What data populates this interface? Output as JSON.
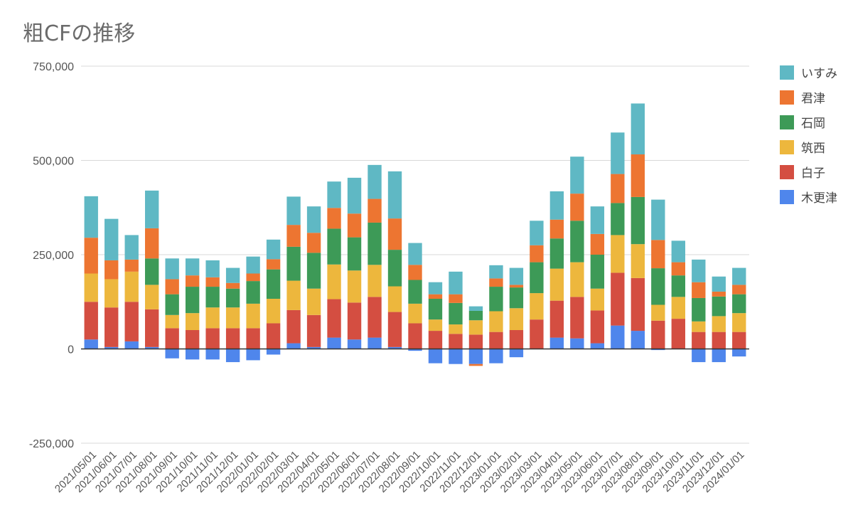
{
  "chart_data": {
    "type": "bar",
    "stacked": true,
    "title": "粗CFの推移",
    "ylim": [
      -250000,
      750000
    ],
    "yticks": [
      {
        "value": 750000,
        "label": "750,000"
      },
      {
        "value": 500000,
        "label": "500,000"
      },
      {
        "value": 250000,
        "label": "250,000"
      },
      {
        "value": 0,
        "label": "0"
      },
      {
        "value": -250000,
        "label": "-250,000"
      }
    ],
    "grid": true,
    "legend_position": "right",
    "categories": [
      "2021/05/01",
      "2021/06/01",
      "2021/07/01",
      "2021/08/01",
      "2021/09/01",
      "2021/10/01",
      "2021/11/01",
      "2021/12/01",
      "2022/01/01",
      "2022/02/01",
      "2022/03/01",
      "2022/04/01",
      "2022/05/01",
      "2022/06/01",
      "2022/07/01",
      "2022/08/01",
      "2022/09/01",
      "2022/10/01",
      "2022/11/01",
      "2022/12/01",
      "2023/01/01",
      "2023/02/01",
      "2023/03/01",
      "2023/04/01",
      "2023/05/01",
      "2023/06/01",
      "2023/07/01",
      "2023/08/01",
      "2023/09/01",
      "2023/10/01",
      "2023/11/01",
      "2023/12/01",
      "2024/01/01"
    ],
    "series": [
      {
        "name": "木更津",
        "color": "#4f86ec",
        "values": [
          25000,
          5000,
          20000,
          5000,
          -25000,
          -28000,
          -28000,
          -35000,
          -30000,
          -15000,
          15000,
          5000,
          30000,
          25000,
          30000,
          5000,
          -5000,
          -38000,
          -40000,
          -40000,
          -38000,
          -22000,
          0,
          30000,
          28000,
          15000,
          62000,
          48000,
          -3000,
          0,
          -35000,
          -35000,
          -20000
        ]
      },
      {
        "name": "白子",
        "color": "#d44e41",
        "values": [
          100000,
          105000,
          105000,
          100000,
          55000,
          50000,
          55000,
          55000,
          55000,
          68000,
          88000,
          85000,
          102000,
          98000,
          108000,
          93000,
          68000,
          48000,
          40000,
          38000,
          45000,
          50000,
          78000,
          98000,
          110000,
          87000,
          140000,
          140000,
          75000,
          80000,
          45000,
          45000,
          45000
        ]
      },
      {
        "name": "筑西",
        "color": "#edb73d",
        "values": [
          75000,
          75000,
          80000,
          65000,
          35000,
          45000,
          55000,
          55000,
          65000,
          65000,
          78000,
          70000,
          92000,
          85000,
          85000,
          68000,
          52000,
          30000,
          25000,
          38000,
          55000,
          58000,
          70000,
          85000,
          92000,
          58000,
          100000,
          90000,
          42000,
          58000,
          28000,
          42000,
          50000
        ]
      },
      {
        "name": "石岡",
        "color": "#3d9a57",
        "values": [
          0,
          0,
          0,
          70000,
          55000,
          70000,
          55000,
          50000,
          60000,
          78000,
          90000,
          95000,
          95000,
          88000,
          112000,
          97000,
          63000,
          55000,
          57000,
          25000,
          65000,
          55000,
          82000,
          80000,
          110000,
          90000,
          85000,
          125000,
          97000,
          57000,
          62000,
          52000,
          50000
        ]
      },
      {
        "name": "君津",
        "color": "#ed7531",
        "values": [
          95000,
          50000,
          32000,
          80000,
          40000,
          30000,
          25000,
          15000,
          20000,
          27000,
          58000,
          53000,
          55000,
          63000,
          63000,
          83000,
          40000,
          12000,
          23000,
          -5000,
          22000,
          7000,
          45000,
          50000,
          72000,
          55000,
          77000,
          113000,
          75000,
          35000,
          42000,
          13000,
          25000
        ]
      },
      {
        "name": "いすみ",
        "color": "#5fb8c4",
        "values": [
          110000,
          110000,
          65000,
          100000,
          55000,
          45000,
          45000,
          40000,
          45000,
          52000,
          75000,
          70000,
          70000,
          95000,
          90000,
          125000,
          58000,
          32000,
          60000,
          12000,
          35000,
          45000,
          65000,
          75000,
          98000,
          73000,
          110000,
          135000,
          107000,
          57000,
          60000,
          40000,
          45000
        ]
      }
    ]
  }
}
